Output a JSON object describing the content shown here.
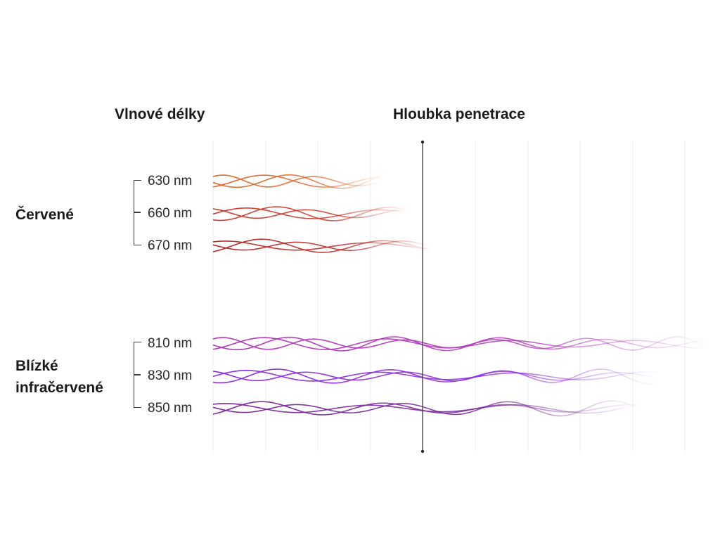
{
  "headers": {
    "wavelengths": "Vlnové délky",
    "penetration": "Hloubka penetrace"
  },
  "groups": [
    {
      "label_line1": "Červené",
      "label_line2": "",
      "wavelengths": [
        {
          "label": "630 nm",
          "color": "#e0692a",
          "depth": 0.34
        },
        {
          "label": "660 nm",
          "color": "#cc3a2e",
          "depth": 0.39
        },
        {
          "label": "670 nm",
          "color": "#b82a28",
          "depth": 0.44
        }
      ]
    },
    {
      "label_line1": "Blízké",
      "label_line2": "infračervené",
      "wavelengths": [
        {
          "label": "810 nm",
          "color": "#b03ab8",
          "depth": 1.0
        },
        {
          "label": "830 nm",
          "color": "#8a2ee0",
          "depth": 0.9
        },
        {
          "label": "850 nm",
          "color": "#7a2a9e",
          "depth": 0.86
        }
      ]
    }
  ]
}
